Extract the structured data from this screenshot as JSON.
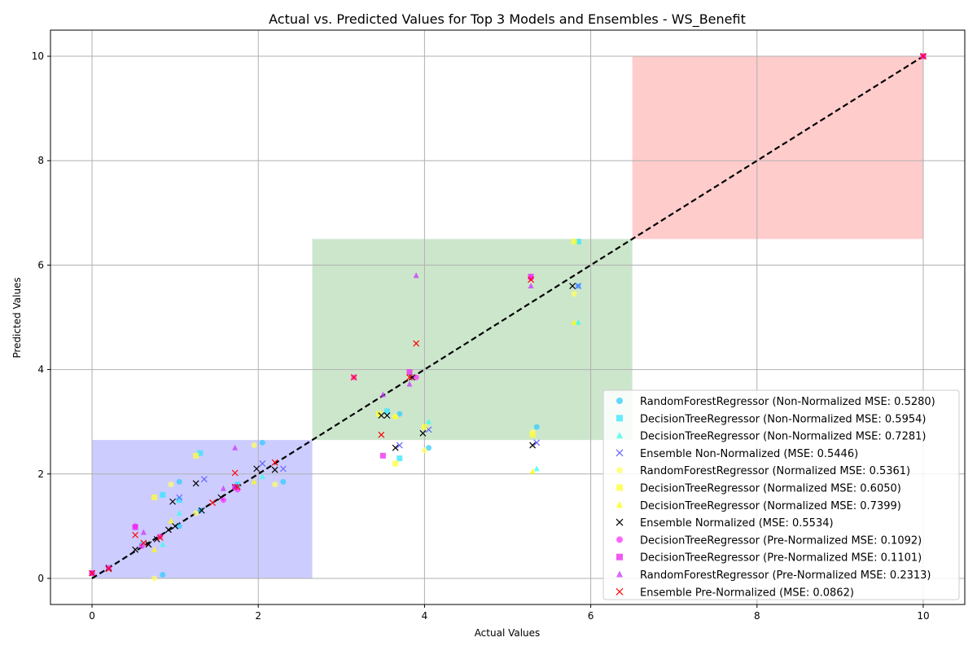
{
  "chart_data": {
    "type": "scatter",
    "title": "Actual vs. Predicted Values for Top 3 Models and Ensembles - WS_Benefit",
    "xlabel": "Actual Values",
    "ylabel": "Predicted Values",
    "xlim": [
      -0.5,
      10.5
    ],
    "ylim": [
      -0.5,
      10.5
    ],
    "xticks": [
      0,
      2,
      4,
      6,
      8,
      10
    ],
    "yticks": [
      0,
      2,
      4,
      6,
      8,
      10
    ],
    "grid": true,
    "legend_position": "lower-right",
    "diagonal_line": {
      "from": [
        0,
        0
      ],
      "to": [
        10,
        10
      ],
      "color": "#000000",
      "style": "dashed"
    },
    "regions": [
      {
        "x": [
          0,
          2.65
        ],
        "y": [
          0,
          2.65
        ],
        "color": "#0000ff",
        "opacity": 0.2
      },
      {
        "x": [
          2.65,
          6.5
        ],
        "y": [
          2.65,
          6.5
        ],
        "color": "#008000",
        "opacity": 0.2
      },
      {
        "x": [
          6.5,
          10
        ],
        "y": [
          6.5,
          10
        ],
        "color": "#ff0000",
        "opacity": 0.2
      }
    ],
    "series": [
      {
        "name": "RandomForestRegressor (Non-Normalized MSE: 0.5280)",
        "marker": "circle",
        "color": "#33ccff",
        "points": [
          [
            0,
            0.1
          ],
          [
            0.2,
            0.2
          ],
          [
            0.6,
            0.65
          ],
          [
            0.85,
            0.07
          ],
          [
            1.05,
            1.0
          ],
          [
            1.05,
            1.85
          ],
          [
            1.3,
            1.3
          ],
          [
            1.75,
            1.75
          ],
          [
            2.05,
            2.6
          ],
          [
            2.3,
            1.85
          ],
          [
            3.7,
            3.15
          ],
          [
            4.05,
            2.5
          ],
          [
            5.35,
            2.9
          ],
          [
            5.85,
            5.6
          ],
          [
            10,
            10
          ]
        ]
      },
      {
        "name": "DecisionTreeRegressor (Non-Normalized MSE: 0.5954)",
        "marker": "square",
        "color": "#33e6ff",
        "points": [
          [
            0,
            0.1
          ],
          [
            0.85,
            1.6
          ],
          [
            1.05,
            1.5
          ],
          [
            1.3,
            2.4
          ],
          [
            1.75,
            1.8
          ],
          [
            3.55,
            3.2
          ],
          [
            3.7,
            2.3
          ],
          [
            5.85,
            6.45
          ],
          [
            10,
            10
          ]
        ]
      },
      {
        "name": "DecisionTreeRegressor (Non-Normalized MSE: 0.7281)",
        "marker": "triangle",
        "color": "#33ffee",
        "points": [
          [
            0.85,
            0.65
          ],
          [
            1.05,
            1.25
          ],
          [
            2.05,
            1.95
          ],
          [
            4.05,
            3.0
          ],
          [
            5.35,
            2.1
          ],
          [
            5.85,
            4.9
          ],
          [
            10,
            10
          ]
        ]
      },
      {
        "name": "Ensemble Non-Normalized (MSE: 0.5446)",
        "marker": "x",
        "color": "#6666ff",
        "points": [
          [
            0.2,
            0.2
          ],
          [
            1.05,
            1.55
          ],
          [
            1.35,
            1.9
          ],
          [
            2.05,
            2.2
          ],
          [
            2.3,
            2.1
          ],
          [
            3.7,
            2.55
          ],
          [
            4.05,
            2.85
          ],
          [
            5.35,
            2.6
          ],
          [
            5.85,
            5.6
          ],
          [
            10,
            10
          ]
        ]
      },
      {
        "name": "RandomForestRegressor (Normalized MSE: 0.5361)",
        "marker": "circle",
        "color": "#ffff66",
        "points": [
          [
            0.75,
            0.0
          ],
          [
            0.95,
            1.8
          ],
          [
            1.25,
            1.25
          ],
          [
            1.95,
            2.55
          ],
          [
            2.2,
            1.8
          ],
          [
            3.65,
            3.1
          ],
          [
            4.0,
            2.45
          ],
          [
            5.3,
            2.8
          ],
          [
            5.8,
            5.45
          ],
          [
            10,
            10
          ]
        ]
      },
      {
        "name": "DecisionTreeRegressor (Normalized MSE: 0.6050)",
        "marker": "square",
        "color": "#ffff33",
        "points": [
          [
            0.75,
            1.55
          ],
          [
            1.25,
            2.35
          ],
          [
            3.45,
            3.15
          ],
          [
            3.65,
            2.2
          ],
          [
            4.0,
            2.9
          ],
          [
            5.3,
            2.75
          ],
          [
            5.8,
            6.45
          ],
          [
            10,
            10
          ]
        ]
      },
      {
        "name": "DecisionTreeRegressor (Normalized MSE: 0.7399)",
        "marker": "triangle",
        "color": "#ffff00",
        "points": [
          [
            0.75,
            0.55
          ],
          [
            0.95,
            1.1
          ],
          [
            1.95,
            1.85
          ],
          [
            3.65,
            3.1
          ],
          [
            5.3,
            2.05
          ],
          [
            5.8,
            4.9
          ],
          [
            10,
            10
          ]
        ]
      },
      {
        "name": "Ensemble Normalized (MSE: 0.5534)",
        "marker": "x",
        "color": "#000000",
        "points": [
          [
            0.2,
            0.2
          ],
          [
            0.52,
            0.55
          ],
          [
            0.68,
            0.65
          ],
          [
            0.78,
            0.75
          ],
          [
            0.92,
            0.93
          ],
          [
            0.97,
            1.47
          ],
          [
            1.0,
            1.0
          ],
          [
            1.25,
            1.82
          ],
          [
            1.32,
            1.3
          ],
          [
            1.55,
            1.55
          ],
          [
            1.72,
            1.75
          ],
          [
            1.98,
            2.1
          ],
          [
            2.2,
            2.08
          ],
          [
            3.48,
            3.12
          ],
          [
            3.55,
            3.12
          ],
          [
            3.65,
            2.5
          ],
          [
            3.85,
            3.85
          ],
          [
            3.98,
            2.78
          ],
          [
            5.3,
            2.55
          ],
          [
            5.78,
            5.6
          ],
          [
            10,
            10
          ]
        ]
      },
      {
        "name": "DecisionTreeRegressor (Pre-Normalized MSE: 0.1092)",
        "marker": "circle",
        "color": "#ff33ff",
        "points": [
          [
            0,
            0.1
          ],
          [
            0.2,
            0.2
          ],
          [
            0.52,
            1.0
          ],
          [
            0.6,
            0.62
          ],
          [
            0.82,
            0.8
          ],
          [
            1.58,
            1.5
          ],
          [
            1.75,
            1.7
          ],
          [
            3.15,
            3.85
          ],
          [
            3.9,
            3.85
          ],
          [
            5.28,
            5.75
          ],
          [
            10,
            10
          ]
        ]
      },
      {
        "name": "DecisionTreeRegressor (Pre-Normalized MSE: 0.1101)",
        "marker": "square",
        "color": "#ee22ee",
        "points": [
          [
            0,
            0.1
          ],
          [
            0.52,
            0.98
          ],
          [
            1.72,
            1.75
          ],
          [
            3.5,
            2.35
          ],
          [
            3.82,
            3.95
          ],
          [
            5.28,
            5.78
          ],
          [
            10,
            10
          ]
        ]
      },
      {
        "name": "RandomForestRegressor (Pre-Normalized MSE: 0.2313)",
        "marker": "triangle",
        "color": "#cc33ff",
        "points": [
          [
            0.62,
            0.88
          ],
          [
            1.58,
            1.72
          ],
          [
            1.72,
            2.5
          ],
          [
            3.5,
            3.52
          ],
          [
            3.82,
            3.72
          ],
          [
            3.9,
            5.8
          ],
          [
            5.28,
            5.6
          ],
          [
            10,
            10
          ]
        ]
      },
      {
        "name": "Ensemble Pre-Normalized (MSE: 0.0862)",
        "marker": "x",
        "color": "#ff0000",
        "points": [
          [
            0,
            0.1
          ],
          [
            0.2,
            0.18
          ],
          [
            0.52,
            0.83
          ],
          [
            0.62,
            0.68
          ],
          [
            0.82,
            0.78
          ],
          [
            1.45,
            1.45
          ],
          [
            1.72,
            2.02
          ],
          [
            1.75,
            1.75
          ],
          [
            2.2,
            2.22
          ],
          [
            3.15,
            3.85
          ],
          [
            3.48,
            2.75
          ],
          [
            3.82,
            3.85
          ],
          [
            3.9,
            4.5
          ],
          [
            5.28,
            5.72
          ],
          [
            10,
            10
          ]
        ]
      }
    ]
  }
}
